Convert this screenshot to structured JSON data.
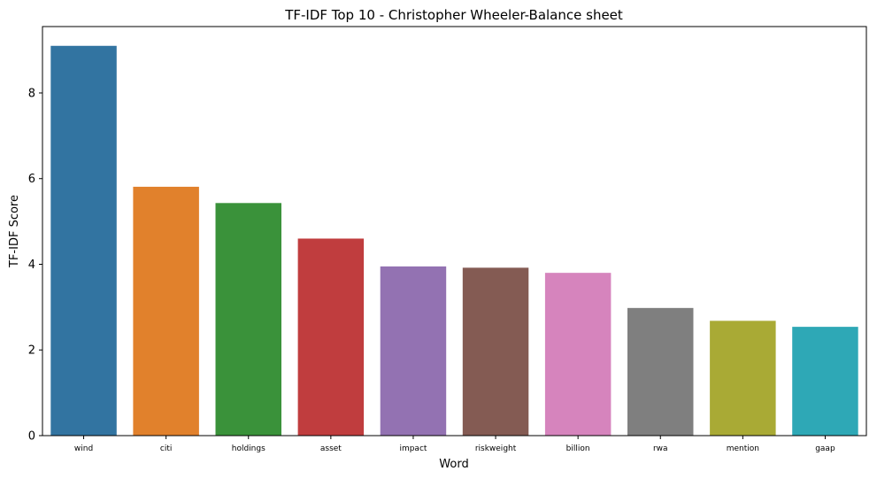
{
  "chart_data": {
    "type": "bar",
    "title": "TF-IDF Top 10 - Christopher Wheeler-Balance sheet",
    "xlabel": "Word",
    "ylabel": "TF-IDF Score",
    "categories": [
      "wind",
      "citi",
      "holdings",
      "asset",
      "impact",
      "riskweight",
      "billion",
      "rwa",
      "mention",
      "gaap"
    ],
    "values": [
      9.1,
      5.81,
      5.43,
      4.6,
      3.95,
      3.92,
      3.8,
      2.98,
      2.68,
      2.54
    ],
    "colors": [
      "#3274a1",
      "#e1812c",
      "#3a923a",
      "#c03d3e",
      "#9372b2",
      "#845b53",
      "#d684bd",
      "#7f7f7f",
      "#a9aa35",
      "#2ea8b6"
    ],
    "ylim": [
      0,
      9.55
    ],
    "yticks": [
      0,
      2,
      4,
      6,
      8
    ],
    "grid": false,
    "legend": "none"
  }
}
